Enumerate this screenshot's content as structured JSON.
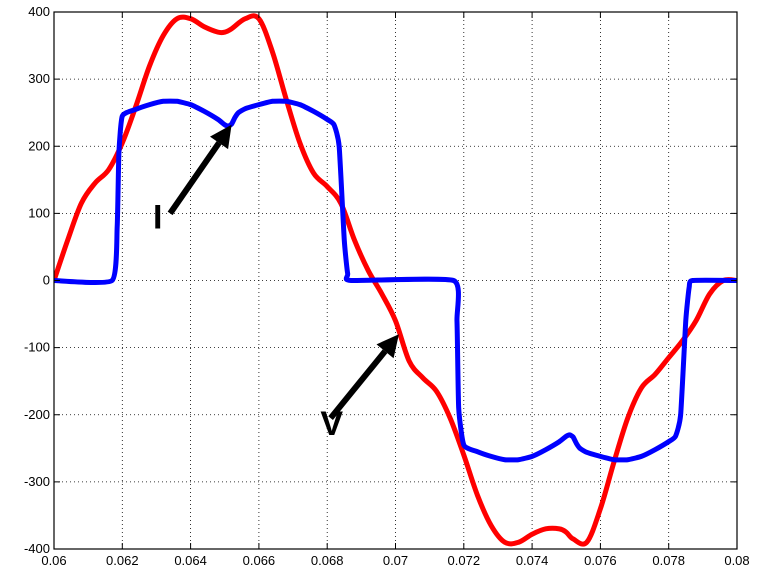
{
  "chart_data": {
    "type": "line",
    "title": "",
    "xlabel": "",
    "ylabel": "",
    "xlim": [
      0.06,
      0.08
    ],
    "ylim": [
      -400,
      400
    ],
    "grid": true,
    "x_ticks": [
      0.06,
      0.062,
      0.064,
      0.066,
      0.068,
      0.07,
      0.072,
      0.074,
      0.076,
      0.078,
      0.08
    ],
    "x_tick_labels": [
      "0.06",
      "0.062",
      "0.064",
      "0.066",
      "0.068",
      "0.07",
      "0.072",
      "0.074",
      "0.076",
      "0.078",
      "0.08"
    ],
    "y_ticks": [
      400,
      300,
      200,
      100,
      0,
      -100,
      -200,
      -300,
      -400
    ],
    "y_tick_labels": [
      "400",
      "300",
      "200",
      "100",
      "0",
      "-100",
      "-200",
      "-300",
      "-400"
    ],
    "series": [
      {
        "label": "V",
        "color": "#ff0000",
        "x": [
          0.06,
          0.0604,
          0.0608,
          0.0612,
          0.0616,
          0.062,
          0.0624,
          0.0628,
          0.0632,
          0.0636,
          0.064,
          0.0644,
          0.0648,
          0.065,
          0.0652,
          0.0656,
          0.066,
          0.0664,
          0.0668,
          0.0672,
          0.0676,
          0.068,
          0.0684,
          0.0688,
          0.0692,
          0.0696,
          0.07,
          0.0704,
          0.0708,
          0.0712,
          0.0716,
          0.072,
          0.0724,
          0.0728,
          0.0732,
          0.0736,
          0.074,
          0.0744,
          0.0748,
          0.075,
          0.0752,
          0.0756,
          0.076,
          0.0764,
          0.0768,
          0.0772,
          0.0776,
          0.078,
          0.0784,
          0.0788,
          0.0792,
          0.0796,
          0.08
        ],
        "y": [
          0,
          60,
          115,
          145,
          165,
          205,
          260,
          320,
          365,
          390,
          390,
          378,
          370,
          370,
          375,
          390,
          390,
          340,
          270,
          205,
          160,
          140,
          115,
          60,
          15,
          -20,
          -60,
          -120,
          -145,
          -165,
          -205,
          -260,
          -320,
          -365,
          -390,
          -390,
          -378,
          -370,
          -370,
          -375,
          -385,
          -390,
          -340,
          -270,
          -205,
          -160,
          -140,
          -115,
          -90,
          -60,
          -20,
          0,
          0
        ]
      },
      {
        "label": "I",
        "color": "#0000ff",
        "x": [
          0.06,
          0.0617,
          0.06185,
          0.0619,
          0.062,
          0.0624,
          0.0628,
          0.0632,
          0.0636,
          0.064,
          0.0644,
          0.0648,
          0.065,
          0.0651,
          0.0652,
          0.0653,
          0.0654,
          0.0656,
          0.066,
          0.0664,
          0.0668,
          0.0672,
          0.0676,
          0.068,
          0.0682,
          0.06835,
          0.0685,
          0.0686,
          0.0687,
          0.0717,
          0.0718,
          0.07185,
          0.072,
          0.0724,
          0.0728,
          0.0732,
          0.0736,
          0.074,
          0.0744,
          0.0748,
          0.075,
          0.0751,
          0.0752,
          0.0753,
          0.0754,
          0.0756,
          0.076,
          0.0764,
          0.0768,
          0.0772,
          0.0776,
          0.078,
          0.0782,
          0.07835,
          0.0785,
          0.0786,
          0.0787,
          0.08
        ],
        "y": [
          0,
          0,
          80,
          190,
          245,
          255,
          262,
          267,
          267,
          262,
          252,
          240,
          232,
          230,
          233,
          243,
          250,
          256,
          262,
          267,
          267,
          262,
          252,
          240,
          232,
          200,
          60,
          10,
          0,
          0,
          -60,
          -190,
          -245,
          -255,
          -262,
          -267,
          -267,
          -262,
          -252,
          -240,
          -232,
          -230,
          -233,
          -243,
          -250,
          -256,
          -262,
          -267,
          -267,
          -262,
          -252,
          -240,
          -232,
          -200,
          -60,
          -10,
          0,
          0
        ]
      }
    ],
    "annotations": [
      {
        "text": "I",
        "points_to": "I",
        "x": 0.0629,
        "y": 95,
        "arrow_from": [
          0.0634,
          100
        ],
        "arrow_to": [
          0.0652,
          232
        ]
      },
      {
        "text": "V",
        "points_to": "V",
        "x": 0.0678,
        "y": -212,
        "arrow_from": [
          0.0681,
          -205
        ],
        "arrow_to": [
          0.0701,
          -80
        ]
      }
    ]
  }
}
